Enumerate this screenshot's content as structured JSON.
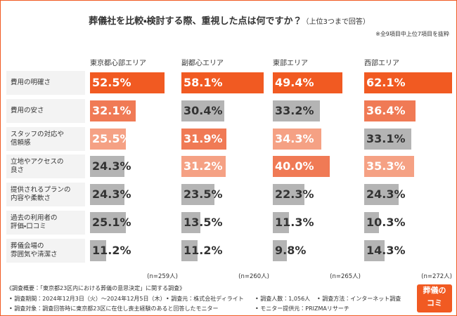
{
  "chart_data": {
    "type": "bar",
    "title": "葬儀社を比較・検討する際、重視した点は何ですか？",
    "subtitle": "（上位3つまで回答）",
    "note": "※全9項目中上位7項目を抜粋",
    "categories": [
      "費用の明確さ",
      "費用の安さ",
      "スタッフの対応や\n信頼感",
      "立地やアクセスの\n良さ",
      "提供されるプランの\n内容や柔軟さ",
      "過去の利用者の\n評価・口コミ",
      "葬儀会場の\n雰囲気や清潔さ"
    ],
    "series": [
      {
        "name": "東京都心部エリア",
        "sample": "(n=259人)",
        "values": [
          52.5,
          32.1,
          25.5,
          24.3,
          24.3,
          25.1,
          11.2
        ],
        "value_labels": [
          "52.5%",
          "32.1%",
          "25.5%",
          "24.3%",
          "24.3%",
          "25.1%",
          "11.2%"
        ],
        "colors": [
          "#f15a22",
          "#f07a55",
          "#f5a184",
          "#b4b4b4",
          "#b4b4b4",
          "#b4b4b4",
          "#b4b4b4"
        ]
      },
      {
        "name": "副都心エリア",
        "sample": "(n=260人)",
        "values": [
          58.1,
          30.4,
          31.9,
          31.2,
          23.5,
          13.5,
          11.2
        ],
        "value_labels": [
          "58.1%",
          "30.4%",
          "31.9%",
          "31.2%",
          "23.5%",
          "13.5%",
          "11.2%"
        ],
        "colors": [
          "#f15a22",
          "#b4b4b4",
          "#f07a55",
          "#f5a184",
          "#b4b4b4",
          "#b4b4b4",
          "#b4b4b4"
        ]
      },
      {
        "name": "東部エリア",
        "sample": "(n=265人)",
        "values": [
          49.4,
          33.2,
          34.3,
          40.0,
          22.3,
          11.3,
          9.8
        ],
        "value_labels": [
          "49.4%",
          "33.2%",
          "34.3%",
          "40.0%",
          "22.3%",
          "11.3%",
          "9.8%"
        ],
        "colors": [
          "#f15a22",
          "#b4b4b4",
          "#f5a184",
          "#f07a55",
          "#b4b4b4",
          "#b4b4b4",
          "#b4b4b4"
        ]
      },
      {
        "name": "西部エリア",
        "sample": "(n=272人)",
        "values": [
          62.1,
          36.4,
          33.1,
          35.3,
          24.3,
          10.3,
          14.3
        ],
        "value_labels": [
          "62.1%",
          "36.4%",
          "33.1%",
          "35.3%",
          "24.3%",
          "10.3%",
          "14.3%"
        ],
        "colors": [
          "#f15a22",
          "#f07a55",
          "#b4b4b4",
          "#f5a184",
          "#b4b4b4",
          "#b4b4b4",
          "#b4b4b4"
        ]
      }
    ]
  },
  "footer": {
    "heading": "《調査概要：「東京都23区内における葬儀の意思決定」に関する調査》",
    "items": [
      "• 調査期間：2024年12月3日（火）〜2024年12月5日（木）",
      "• 調査元：株式会社ディライト",
      "• 調査人数：1,056人",
      "• 調査方法：インターネット調査",
      "• 調査対象：調査回答時に東京都23区に在住し喪主経験のあると回答したモニター",
      "• モニター提供元：PRIZMAリサーチ"
    ]
  },
  "logo": {
    "line1": "葬儀の",
    "line2": "コミ"
  }
}
